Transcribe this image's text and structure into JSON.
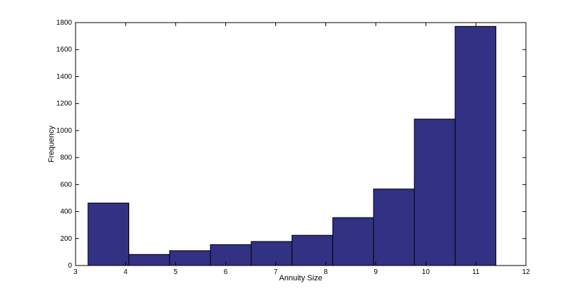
{
  "chart_data": {
    "type": "bar",
    "xlabel": "Annuity Size",
    "ylabel": "Frequency",
    "xlim": [
      3,
      12
    ],
    "ylim": [
      0,
      1800
    ],
    "xticks": [
      3,
      4,
      5,
      6,
      7,
      8,
      9,
      10,
      11,
      12
    ],
    "yticks": [
      0,
      200,
      400,
      600,
      800,
      1000,
      1200,
      1400,
      1600,
      1800
    ],
    "bin_edges": [
      3.25,
      4.065,
      4.88,
      5.695,
      6.51,
      7.325,
      8.14,
      8.955,
      9.77,
      10.585,
      11.4
    ],
    "values": [
      463,
      82,
      110,
      155,
      178,
      224,
      355,
      567,
      1085,
      1772
    ],
    "bar_color": "#333184",
    "grid": false
  }
}
